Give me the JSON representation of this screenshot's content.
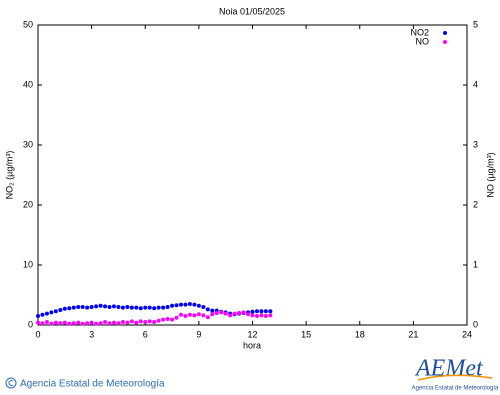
{
  "chart_data": {
    "type": "scatter",
    "title": "Noia 01/05/2025",
    "x_label": "hora",
    "y_label": "NO₂ (µg/m³)",
    "y2_label": "NO (µg/m³)",
    "x": [
      0,
      0.25,
      0.5,
      0.75,
      1,
      1.25,
      1.5,
      1.75,
      2,
      2.25,
      2.5,
      2.75,
      3,
      3.25,
      3.5,
      3.75,
      4,
      4.25,
      4.5,
      4.75,
      5,
      5.25,
      5.5,
      5.75,
      6,
      6.25,
      6.5,
      6.75,
      7,
      7.25,
      7.5,
      7.75,
      8,
      8.25,
      8.5,
      8.75,
      9,
      9.25,
      9.5,
      9.75,
      10,
      10.25,
      10.5,
      10.75,
      11,
      11.25,
      11.5,
      11.75,
      12,
      12.25,
      12.5,
      12.75,
      13
    ],
    "series": [
      {
        "name": "NO2",
        "color": "#0000ff",
        "values": [
          1.5,
          1.7,
          1.9,
          2.1,
          2.3,
          2.5,
          2.7,
          2.8,
          2.9,
          3.0,
          3.0,
          2.9,
          3.0,
          3.1,
          3.2,
          3.1,
          3.0,
          3.1,
          3.0,
          2.9,
          3.0,
          2.9,
          2.9,
          2.8,
          2.9,
          2.9,
          2.8,
          2.9,
          2.9,
          3.0,
          3.2,
          3.3,
          3.4,
          3.4,
          3.5,
          3.4,
          3.2,
          3.0,
          2.6,
          2.4,
          2.4,
          2.2,
          2.1,
          1.9,
          1.8,
          1.9,
          2.0,
          2.1,
          2.2,
          2.3,
          2.3,
          2.3,
          2.3
        ]
      },
      {
        "name": "NO",
        "color": "#ff00ff",
        "axis": "y2",
        "values": [
          0.04,
          0.03,
          0.05,
          0.02,
          0.04,
          0.03,
          0.04,
          0.02,
          0.03,
          0.04,
          0.02,
          0.03,
          0.04,
          0.02,
          0.03,
          0.05,
          0.03,
          0.04,
          0.03,
          0.05,
          0.04,
          0.06,
          0.04,
          0.06,
          0.05,
          0.06,
          0.05,
          0.07,
          0.09,
          0.1,
          0.09,
          0.12,
          0.17,
          0.15,
          0.17,
          0.16,
          0.18,
          0.16,
          0.13,
          0.18,
          0.2,
          0.21,
          0.19,
          0.16,
          0.19,
          0.2,
          0.21,
          0.18,
          0.16,
          0.15,
          0.16,
          0.15,
          0.16
        ]
      }
    ],
    "xlim": [
      0,
      24
    ],
    "xticks": [
      0,
      3,
      6,
      9,
      12,
      15,
      18,
      21,
      24
    ],
    "ylim": [
      0,
      50
    ],
    "yticks": [
      0,
      10,
      20,
      30,
      40,
      50
    ],
    "y2lim": [
      0,
      5
    ],
    "y2ticks": [
      0,
      1,
      2,
      3,
      4,
      5
    ],
    "legend": "top-right",
    "grid": false
  },
  "footer": {
    "text": "Agencia Estatal de Meteorología",
    "logo": "AEMet",
    "logo_subtitle": "Agencia Estatal de Meteorología"
  }
}
